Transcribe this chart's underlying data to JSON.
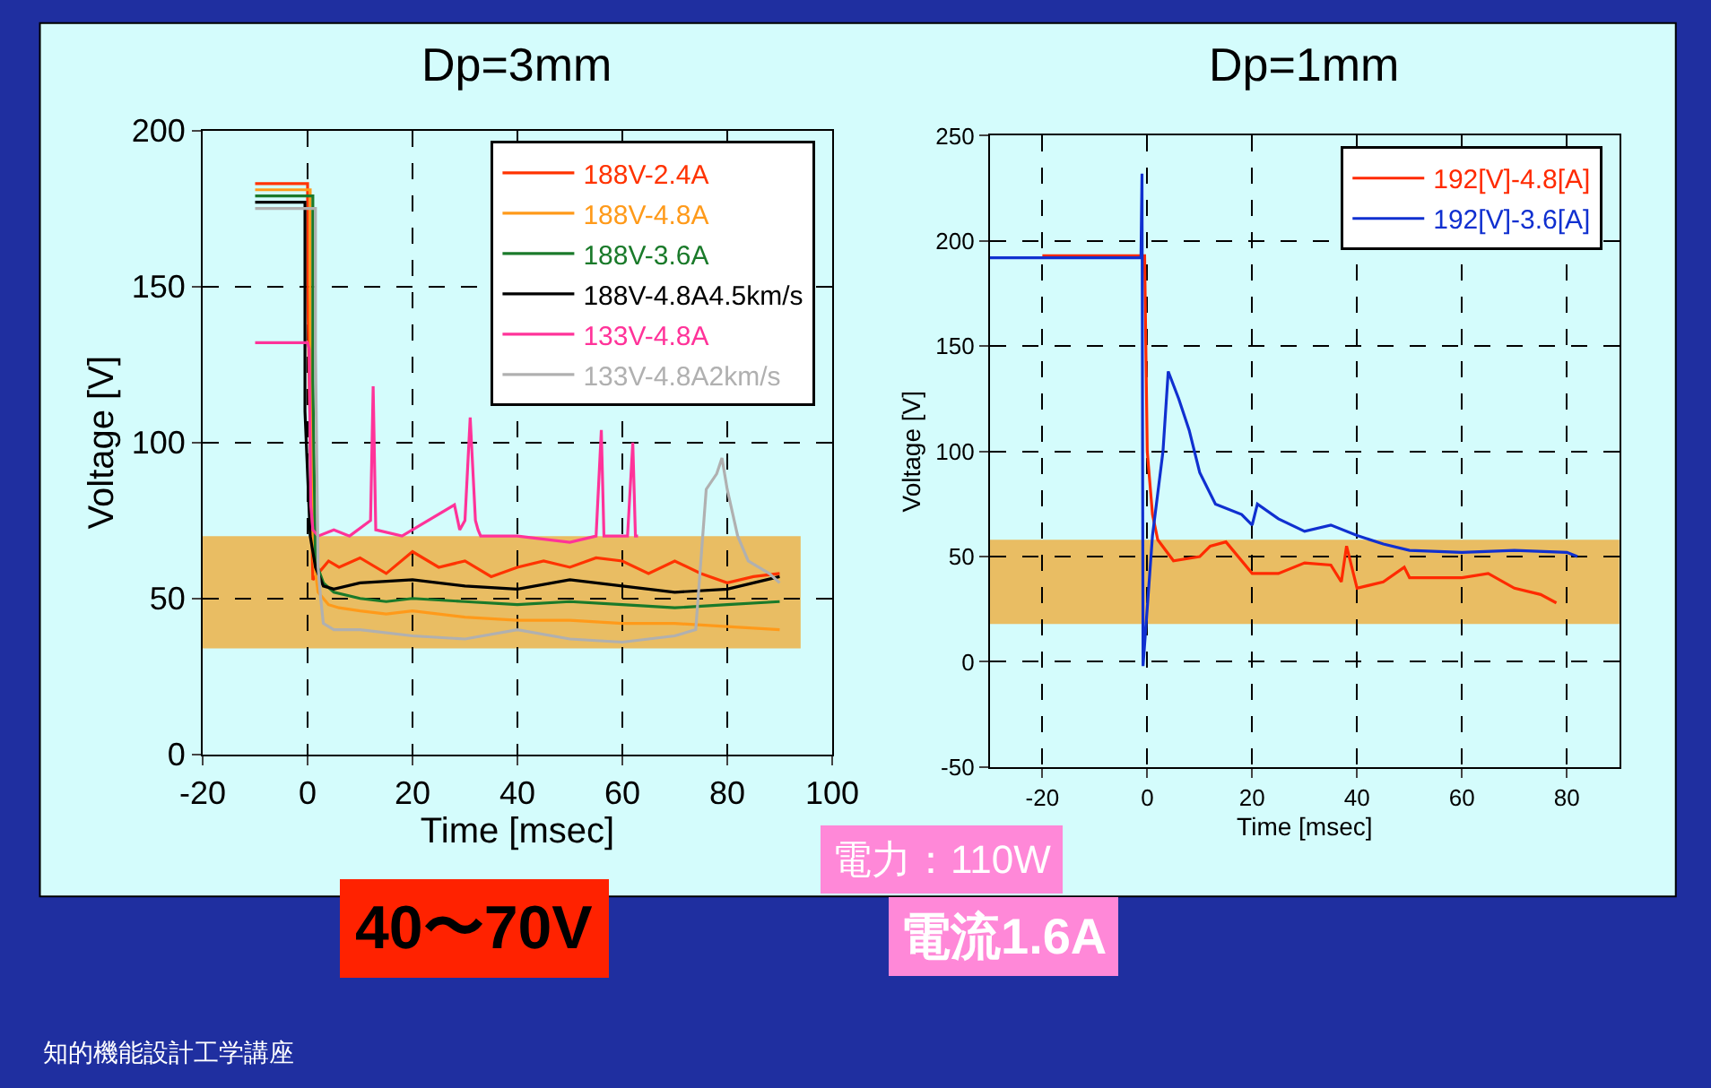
{
  "chart_data": [
    {
      "type": "line",
      "title": "Dp=3mm",
      "xlabel": "Time [msec]",
      "ylabel": "Voltage [V]",
      "xlim": [
        -20,
        100
      ],
      "xticks": [
        -20,
        0,
        20,
        40,
        60,
        80,
        100
      ],
      "ylim": [
        0,
        200
      ],
      "yticks": [
        0,
        50,
        100,
        150,
        200
      ],
      "grid": true,
      "legend": "top right",
      "line_style": "solid",
      "bands": [
        {
          "axis": "y",
          "from": 34,
          "to": 70,
          "color": "#f0a830"
        }
      ],
      "annotations": [
        "40〜70V",
        "知的機能設計工学講座"
      ],
      "series": [
        {
          "name": "188V-2.4A",
          "color": "#ff3300",
          "x": [
            -10,
            0,
            0,
            1,
            2,
            4,
            6,
            10,
            15,
            20,
            25,
            30,
            35,
            40,
            45,
            50,
            55,
            60,
            65,
            70,
            75,
            80,
            85,
            90
          ],
          "values": [
            183,
            183,
            150,
            56,
            58,
            62,
            60,
            63,
            58,
            65,
            60,
            62,
            57,
            60,
            62,
            60,
            63,
            62,
            58,
            62,
            58,
            55,
            57,
            58
          ]
        },
        {
          "name": "188V-4.8A",
          "color": "#ff9a1a",
          "x": [
            -10,
            0.5,
            0.5,
            1,
            2,
            4,
            6,
            10,
            15,
            20,
            30,
            40,
            50,
            60,
            70,
            80,
            90
          ],
          "values": [
            181,
            181,
            140,
            65,
            52,
            48,
            47,
            46,
            45,
            46,
            44,
            43,
            43,
            42,
            42,
            41,
            40
          ]
        },
        {
          "name": "188V-3.6A",
          "color": "#1a7a2a",
          "x": [
            -10,
            1,
            1,
            1.5,
            3,
            5,
            10,
            15,
            20,
            30,
            40,
            50,
            60,
            70,
            80,
            90
          ],
          "values": [
            179,
            179,
            120,
            62,
            55,
            52,
            50,
            49,
            50,
            49,
            48,
            49,
            48,
            47,
            48,
            49
          ]
        },
        {
          "name": "188V-4.8A4.5km/s",
          "color": "#000000",
          "x": [
            -10,
            -0.5,
            -0.5,
            0.5,
            1.5,
            3,
            5,
            10,
            20,
            30,
            40,
            50,
            60,
            70,
            80,
            85,
            90
          ],
          "values": [
            177,
            177,
            110,
            70,
            60,
            54,
            53,
            55,
            56,
            54,
            53,
            56,
            54,
            52,
            53,
            55,
            57
          ]
        },
        {
          "name": "133V-4.8A",
          "color": "#ff3399",
          "x": [
            -10,
            0,
            0.3,
            0.6,
            1,
            2,
            5,
            8,
            12,
            12.5,
            13,
            18,
            20,
            28,
            29,
            30,
            31,
            32,
            32.5,
            33,
            40,
            50,
            55,
            56,
            56.5,
            57,
            61,
            62,
            62.5,
            63
          ],
          "values": [
            132,
            132,
            130,
            80,
            72,
            70,
            72,
            70,
            75,
            118,
            72,
            70,
            72,
            80,
            72,
            75,
            108,
            75,
            72,
            70,
            70,
            68,
            70,
            104,
            70,
            70,
            70,
            100,
            70,
            70
          ]
        },
        {
          "name": "133V-4.8A2km/s",
          "color": "#b0b0b0",
          "x": [
            -10,
            1.5,
            1.5,
            2,
            2.5,
            3,
            5,
            10,
            20,
            30,
            40,
            50,
            60,
            70,
            74,
            76,
            78,
            79,
            80,
            82,
            84,
            86,
            88,
            90
          ],
          "values": [
            175,
            175,
            130,
            60,
            50,
            42,
            40,
            40,
            38,
            37,
            40,
            37,
            36,
            38,
            40,
            85,
            90,
            95,
            85,
            70,
            62,
            60,
            58,
            55
          ]
        }
      ]
    },
    {
      "type": "line",
      "title": "Dp=1mm",
      "xlabel": "Time [msec]",
      "ylabel": "Voltage [V]",
      "xlim": [
        -30,
        90
      ],
      "xticks": [
        -20,
        0,
        20,
        40,
        60,
        80
      ],
      "ylim": [
        -50,
        250
      ],
      "yticks": [
        -50,
        0,
        50,
        100,
        150,
        200,
        250
      ],
      "grid": true,
      "legend": "top right",
      "line_style": "solid",
      "bands": [
        {
          "axis": "y",
          "from": 18,
          "to": 58,
          "color": "#f0a830"
        }
      ],
      "annotations": [
        "電力：110W",
        "電流1.6A"
      ],
      "series": [
        {
          "name": "192[V]-4.8[A]",
          "color": "#ff2a00",
          "x": [
            -20,
            -0.5,
            0,
            1,
            2,
            5,
            10,
            12,
            15,
            20,
            25,
            30,
            35,
            37,
            38,
            40,
            45,
            49,
            50,
            60,
            65,
            70,
            75,
            78
          ],
          "values": [
            193,
            193,
            100,
            70,
            58,
            48,
            50,
            55,
            57,
            42,
            42,
            47,
            46,
            38,
            55,
            35,
            38,
            45,
            40,
            40,
            42,
            35,
            32,
            28
          ]
        },
        {
          "name": "192[V]-3.6[A]",
          "color": "#1030d0",
          "x": [
            -30,
            -1.2,
            -1,
            -0.8,
            1,
            3,
            4,
            6,
            8,
            10,
            13,
            18,
            20,
            21,
            25,
            30,
            35,
            40,
            45,
            50,
            60,
            70,
            80,
            82
          ],
          "values": [
            192,
            192,
            232,
            -2,
            60,
            100,
            138,
            125,
            110,
            90,
            75,
            70,
            65,
            75,
            68,
            62,
            65,
            60,
            56,
            53,
            52,
            53,
            52,
            50
          ]
        }
      ]
    }
  ]
}
